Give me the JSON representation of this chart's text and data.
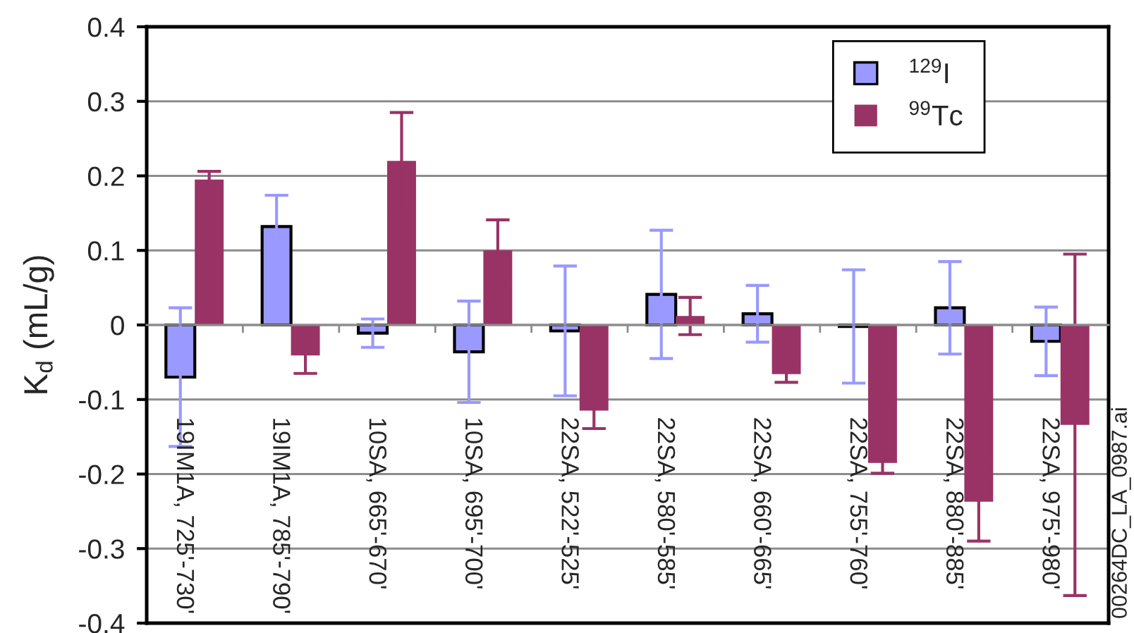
{
  "chart_data": {
    "type": "bar",
    "ylabel": "K$_{d}$ (mL/g)",
    "categories": [
      "19IM1A, 725'-730'",
      "19IM1A, 785'-790'",
      "10SA, 665'-670'",
      "10SA, 695'-700'",
      "22SA, 522'-525'",
      "22SA, 580'-585'",
      "22SA, 660'-665'",
      "22SA, 755'-760'",
      "22SA, 880'-885'",
      "22SA, 975'-980'"
    ],
    "series": [
      {
        "name": "$^{129}$I",
        "color": "#9999ff",
        "values": [
          -0.07,
          0.132,
          -0.011,
          -0.036,
          -0.008,
          0.041,
          0.015,
          -0.002,
          0.023,
          -0.022
        ],
        "errors": [
          0.093,
          0.042,
          0.019,
          0.068,
          0.087,
          0.086,
          0.038,
          0.076,
          0.062,
          0.046
        ]
      },
      {
        "name": "$^{99}$Tc",
        "color": "#993366",
        "values": [
          0.195,
          -0.041,
          0.22,
          0.1,
          -0.115,
          0.012,
          -0.066,
          -0.185,
          -0.237,
          -0.134
        ],
        "errors": [
          0.011,
          0.024,
          0.065,
          0.041,
          0.024,
          0.025,
          0.011,
          0.014,
          0.053,
          0.229
        ]
      }
    ],
    "ylim": [
      -0.4,
      0.4
    ],
    "yticks": [
      -0.4,
      -0.3,
      -0.2,
      -0.1,
      0,
      0.1,
      0.2,
      0.3,
      0.4
    ],
    "grid": "y",
    "legend": "top right",
    "annotations": [
      "00264DC_LA_0987.ai"
    ]
  }
}
